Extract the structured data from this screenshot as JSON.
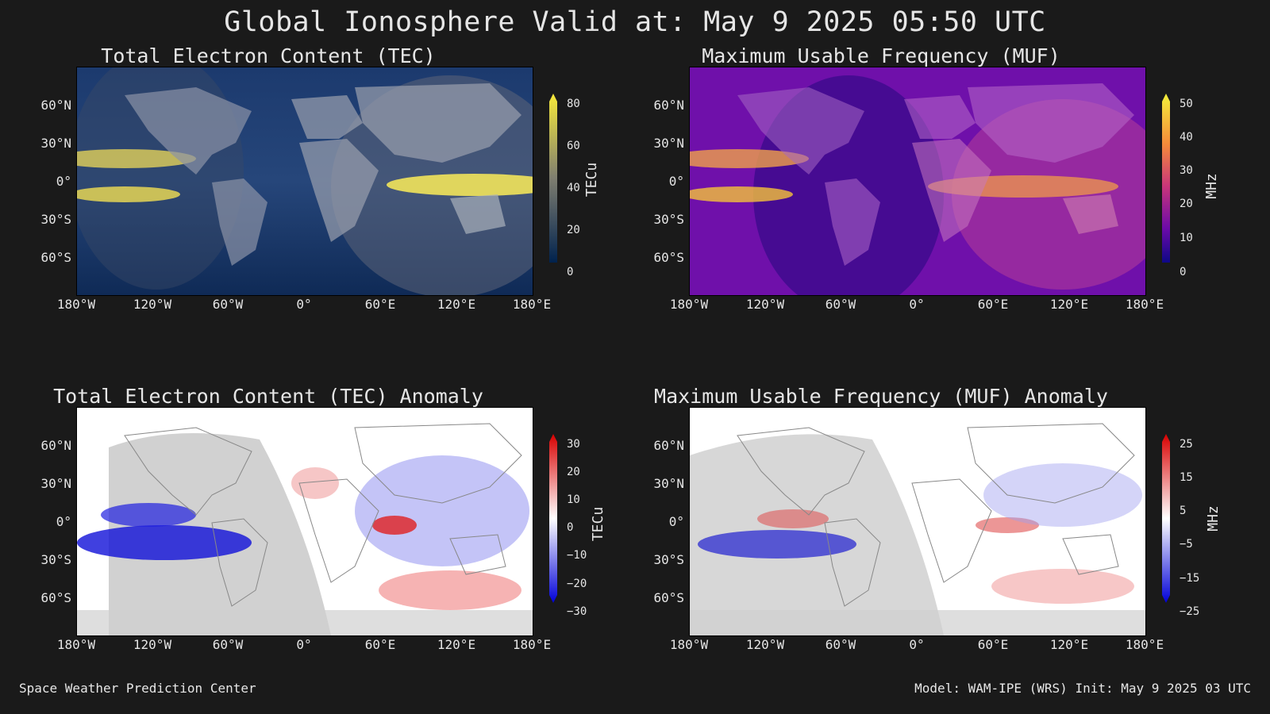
{
  "title": "Global Ionosphere Valid at: May 9 2025 05:50 UTC",
  "lat_labels": [
    "60°N",
    "30°N",
    "0°",
    "30°S",
    "60°S"
  ],
  "lon_labels": [
    "180°W",
    "120°W",
    "60°W",
    "0°",
    "60°E",
    "120°E",
    "180°E"
  ],
  "panels": [
    {
      "title": "Total Electron Content (TEC)",
      "unit": "TECu",
      "ticks": [
        "80",
        "60",
        "40",
        "20",
        "0"
      ],
      "colors": {
        "base": "#0d2a57",
        "low": "#0a2045",
        "high": "#f5e84a",
        "mid": "#7a7e6d"
      }
    },
    {
      "title": "Maximum Usable Frequency (MUF)",
      "unit": "MHz",
      "ticks": [
        "50",
        "40",
        "30",
        "20",
        "10",
        "0"
      ],
      "colors": {
        "base": "#6a0ea8",
        "low": "#3b0a8c",
        "high": "#f7e63b",
        "mid": "#d8487a"
      }
    },
    {
      "title": "Total Electron Content (TEC) Anomaly",
      "unit": "TECu",
      "ticks": [
        "30",
        "20",
        "10",
        "0",
        "−10",
        "−20",
        "−30"
      ],
      "colors": {
        "base": "#ffffff",
        "low": "#0000e0",
        "high": "#e00000",
        "mid": "#ffffff"
      }
    },
    {
      "title": "Maximum Usable Frequency (MUF) Anomaly",
      "unit": "MHz",
      "ticks": [
        "25",
        "15",
        "5",
        "−5",
        "−15",
        "−25"
      ],
      "colors": {
        "base": "#ffffff",
        "low": "#0000e0",
        "high": "#e00000",
        "mid": "#ffffff"
      }
    }
  ],
  "footer": {
    "left": "Space Weather Prediction Center",
    "right": "Model: WAM-IPE (WRS) Init: May 9 2025 03 UTC"
  }
}
